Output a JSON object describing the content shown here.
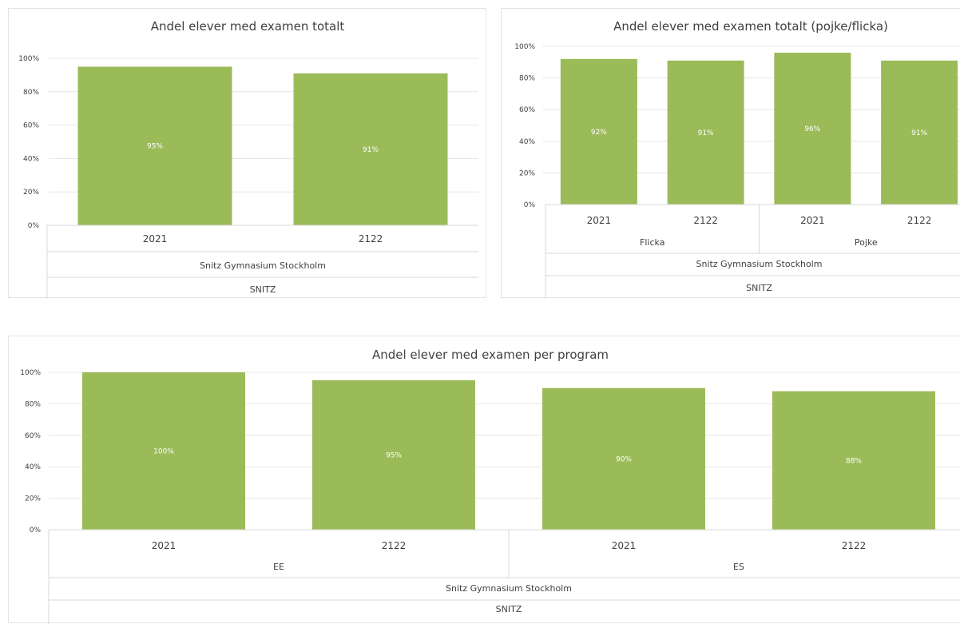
{
  "bar_color": "#9bbb59",
  "chart_data": [
    {
      "type": "bar",
      "title": "Andel elever med examen totalt",
      "y_ticks": [
        "0%",
        "20%",
        "40%",
        "60%",
        "80%",
        "100%"
      ],
      "ylim": [
        0,
        100
      ],
      "grid": true,
      "categories": [
        "2021",
        "2122"
      ],
      "category_groups": [],
      "school": "Snitz Gymnasium Stockholm",
      "org": "SNITZ",
      "values": [
        95,
        91
      ],
      "data_labels": [
        "95%",
        "91%"
      ]
    },
    {
      "type": "bar",
      "title": "Andel elever med examen totalt (pojke/flicka)",
      "y_ticks": [
        "0%",
        "20%",
        "40%",
        "60%",
        "80%",
        "100%"
      ],
      "ylim": [
        0,
        100
      ],
      "grid": true,
      "categories": [
        "2021",
        "2122",
        "2021",
        "2122"
      ],
      "category_groups": [
        "Flicka",
        "Pojke"
      ],
      "school": "Snitz Gymnasium Stockholm",
      "org": "SNITZ",
      "values": [
        92,
        91,
        96,
        91
      ],
      "data_labels": [
        "92%",
        "91%",
        "96%",
        "91%"
      ]
    },
    {
      "type": "bar",
      "title": "Andel elever med examen per program",
      "y_ticks": [
        "0%",
        "20%",
        "40%",
        "60%",
        "80%",
        "100%"
      ],
      "ylim": [
        0,
        100
      ],
      "grid": true,
      "categories": [
        "2021",
        "2122",
        "2021",
        "2122"
      ],
      "category_groups": [
        "EE",
        "ES"
      ],
      "school": "Snitz Gymnasium Stockholm",
      "org": "SNITZ",
      "values": [
        100,
        95,
        90,
        88
      ],
      "data_labels": [
        "100%",
        "95%",
        "90%",
        "88%"
      ]
    }
  ]
}
